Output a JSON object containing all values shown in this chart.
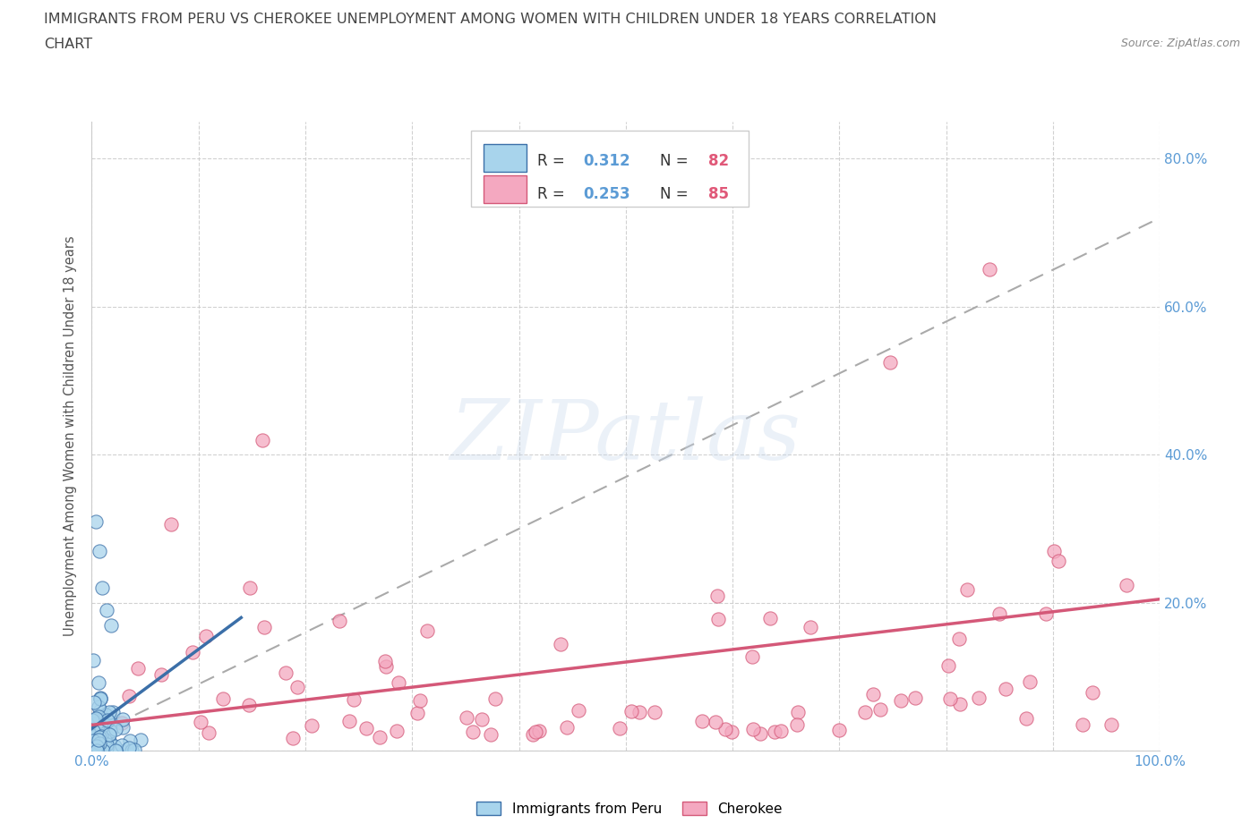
{
  "title_line1": "IMMIGRANTS FROM PERU VS CHEROKEE UNEMPLOYMENT AMONG WOMEN WITH CHILDREN UNDER 18 YEARS CORRELATION",
  "title_line2": "CHART",
  "source_text": "Source: ZipAtlas.com",
  "ylabel": "Unemployment Among Women with Children Under 18 years",
  "xlim": [
    0,
    1.0
  ],
  "ylim": [
    0,
    0.85
  ],
  "peru_color": "#A8D4EC",
  "peru_edge_color": "#3B6FA8",
  "cherokee_color": "#F4A8C0",
  "cherokee_edge_color": "#D45878",
  "peru_R": 0.312,
  "peru_N": 82,
  "cherokee_R": 0.253,
  "cherokee_N": 85,
  "watermark_text": "ZIPatlas",
  "background_color": "#FFFFFF",
  "grid_color": "#CCCCCC",
  "title_color": "#444444",
  "axis_label_color": "#555555",
  "tick_label_color": "#5B9BD5",
  "legend_val_color": "#5B9BD5",
  "legend_n_color": "#E05878",
  "source_color": "#888888"
}
